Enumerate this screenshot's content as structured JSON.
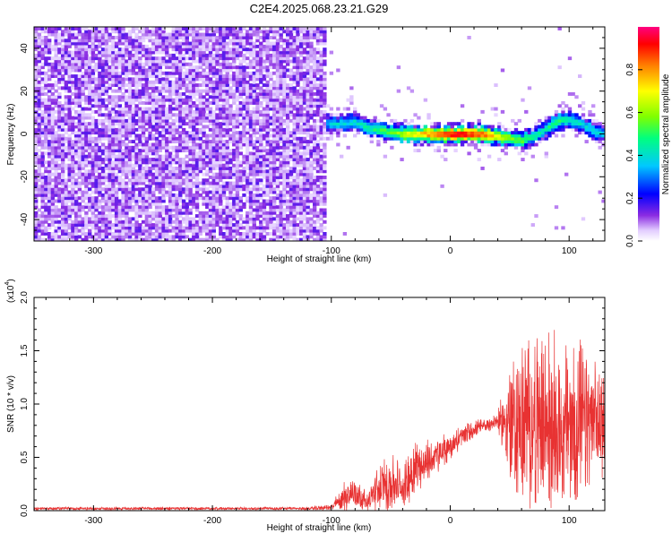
{
  "chart_data": [
    {
      "type": "heatmap",
      "title": "C2E4.2025.068.23.21.G29",
      "xlabel": "Height of straight line (km)",
      "ylabel": "Frequency (Hz)",
      "xlim": [
        -350,
        130
      ],
      "ylim": [
        -50,
        50
      ],
      "xticks": [
        -300,
        -200,
        -100,
        0,
        100
      ],
      "yticks": [
        -40,
        -20,
        0,
        20,
        40
      ],
      "colorbar": {
        "label": "Normalized spectral amplitude",
        "range": [
          0,
          1
        ],
        "ticks": [
          "0.0",
          "0.2",
          "0.4",
          "0.6",
          "0.8"
        ]
      },
      "noise_region_x": [
        -350,
        -105
      ],
      "ridge": {
        "x": [
          -105,
          -90,
          -80,
          -70,
          -60,
          -50,
          -40,
          -30,
          -20,
          -10,
          0,
          10,
          20,
          30,
          40,
          50,
          60,
          70,
          80,
          90,
          100,
          110,
          120,
          130
        ],
        "frequency": [
          5,
          5,
          6,
          3,
          2,
          1,
          0,
          0,
          0,
          0,
          0,
          0,
          0,
          0,
          -1,
          -2,
          -3,
          -1,
          2,
          6,
          7,
          5,
          2,
          0
        ],
        "peak_amplitude": [
          0.35,
          0.4,
          0.4,
          0.45,
          0.5,
          0.55,
          0.65,
          0.7,
          0.8,
          0.85,
          0.95,
          0.95,
          0.9,
          0.85,
          0.7,
          0.6,
          0.55,
          0.45,
          0.45,
          0.5,
          0.45,
          0.4,
          0.4,
          0.35
        ]
      }
    },
    {
      "type": "line",
      "title": "",
      "xlabel": "Height of straight line (km)",
      "ylabel": "SNR (10 * v/v)",
      "multiplier": "(x10",
      "multiplier_exp": "4",
      "multiplier_close": ")",
      "xlim": [
        -350,
        130
      ],
      "ylim": [
        0,
        2.0
      ],
      "xticks": [
        -300,
        -200,
        -100,
        0,
        100
      ],
      "yticks": [
        "0.0",
        "0.5",
        "1.0",
        "1.5",
        "2.0"
      ],
      "color": "#e83232",
      "envelope": {
        "x": [
          -350,
          -120,
          -100,
          -90,
          -80,
          -70,
          -60,
          -50,
          -40,
          -30,
          -20,
          -10,
          0,
          10,
          20,
          30,
          40,
          50,
          60,
          70,
          80,
          90,
          100,
          110,
          120,
          130
        ],
        "mean": [
          0.02,
          0.02,
          0.03,
          0.12,
          0.18,
          0.08,
          0.22,
          0.26,
          0.2,
          0.42,
          0.45,
          0.52,
          0.6,
          0.7,
          0.76,
          0.8,
          0.84,
          0.82,
          0.8,
          0.82,
          0.82,
          0.8,
          0.78,
          0.8,
          0.82,
          0.82
        ],
        "amplitude": [
          0.01,
          0.01,
          0.02,
          0.1,
          0.12,
          0.05,
          0.15,
          0.22,
          0.15,
          0.18,
          0.15,
          0.12,
          0.1,
          0.08,
          0.06,
          0.05,
          0.06,
          0.4,
          0.55,
          0.6,
          0.62,
          0.55,
          0.6,
          0.55,
          0.4,
          0.35
        ]
      }
    }
  ]
}
